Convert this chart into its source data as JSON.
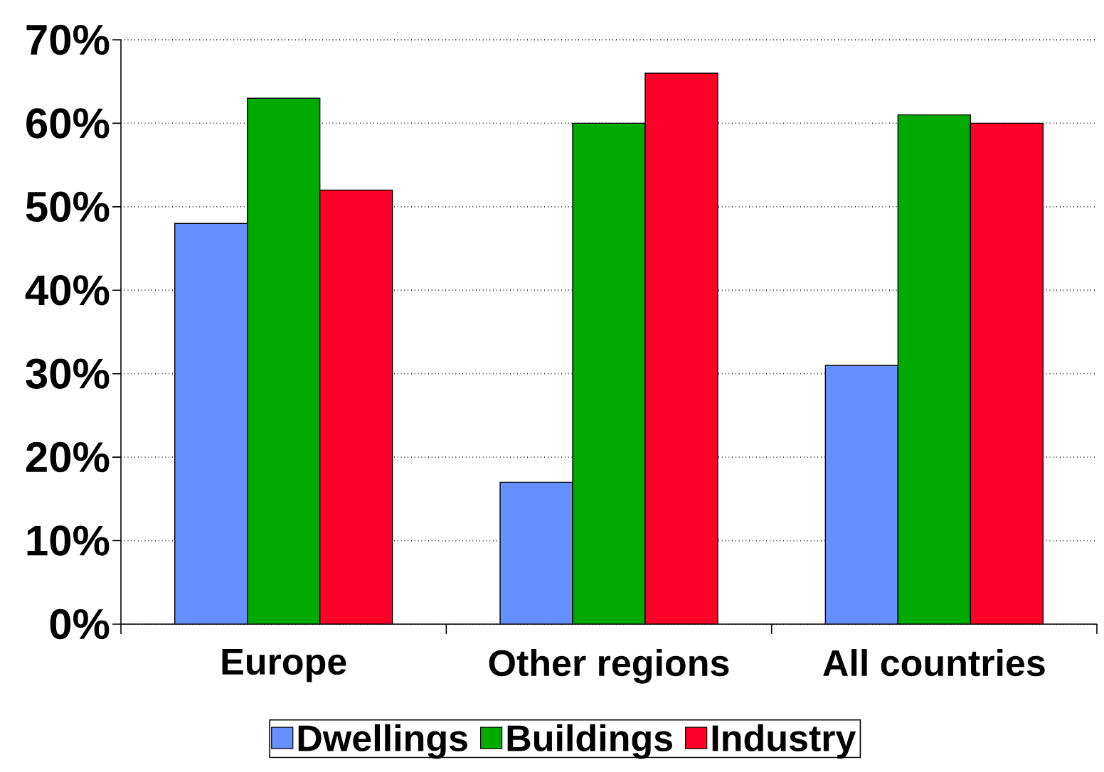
{
  "chart_data": {
    "type": "bar",
    "categories": [
      "Europe",
      "Other regions",
      "All countries"
    ],
    "series": [
      {
        "name": "Dwellings",
        "color": "#6690ff",
        "values": [
          48,
          17,
          31
        ]
      },
      {
        "name": "Buildings",
        "color": "#00aa00",
        "values": [
          63,
          60,
          61
        ]
      },
      {
        "name": "Industry",
        "color": "#ff0029",
        "values": [
          52,
          66,
          60
        ]
      }
    ],
    "ylim": [
      0,
      70
    ],
    "yticks": [
      {
        "value": 0,
        "label": "0%"
      },
      {
        "value": 10,
        "label": "10%"
      },
      {
        "value": 20,
        "label": "20%"
      },
      {
        "value": 30,
        "label": "30%"
      },
      {
        "value": 40,
        "label": "40%"
      },
      {
        "value": 50,
        "label": "50%"
      },
      {
        "value": 60,
        "label": "60%"
      },
      {
        "value": 70,
        "label": "70%"
      }
    ],
    "grid": "y",
    "legend": "bottom"
  }
}
